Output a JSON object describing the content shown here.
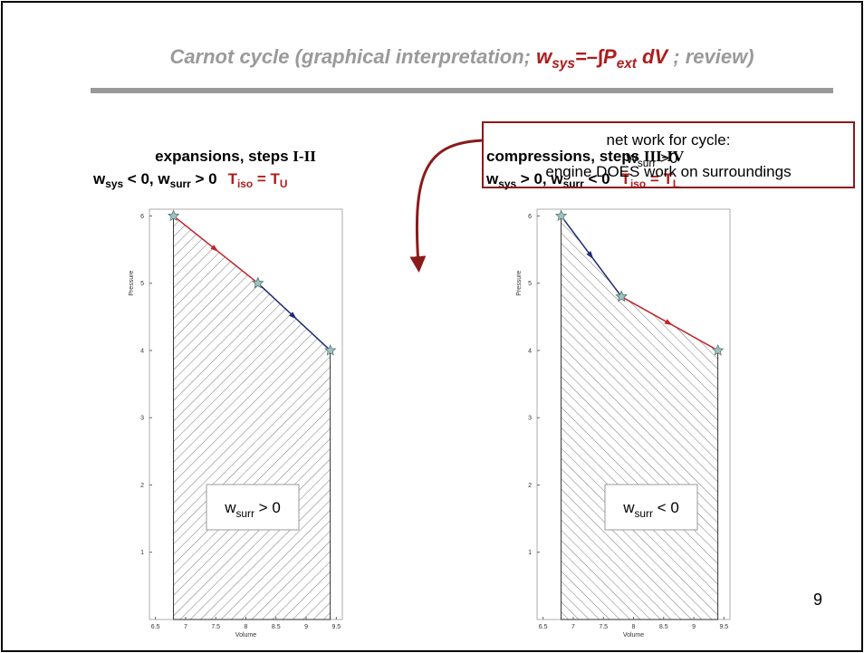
{
  "title": [
    "Carnot cycle (graphical interpretation; ",
    "w",
    "sys",
    "=–∫",
    "P",
    "ext",
    " dV",
    " ;   review)"
  ],
  "left_heading": [
    "expansions, steps ",
    "I-II"
  ],
  "left_condition": [
    "w",
    "sys",
    " <  0, w",
    "surr",
    " > 0",
    "T",
    "iso",
    " = T",
    "U"
  ],
  "right_heading": [
    "compressions, steps ",
    "III-IV"
  ],
  "right_condition": [
    "w",
    "sys",
    " > 0, w",
    "surr",
    " < 0",
    "T",
    "iso",
    " = T",
    "L"
  ],
  "callout": {
    "line1": "net work for cycle:",
    "line2": [
      "w",
      "surr",
      " >0"
    ],
    "line3": "engine DOES work on surroundings"
  },
  "page_number": "9",
  "chart_data": [
    {
      "type": "line",
      "xlabel": "Volume",
      "ylabel": "Pressure",
      "xlim": [
        6.4,
        9.6
      ],
      "ylim": [
        0,
        6.1
      ],
      "xticks": [
        6.5,
        7,
        {
          "value": 7.5,
          "label": "7.5"
        },
        8,
        8.5,
        9,
        9.5
      ],
      "yticks": [
        1,
        2,
        3,
        4,
        5,
        6
      ],
      "annotation": [
        "w",
        "surr",
        " > 0"
      ],
      "series": [
        {
          "color": "#c0262c",
          "x": [
            6.8,
            8.2
          ],
          "values": [
            6,
            5
          ]
        },
        {
          "color": "#1f2a7a",
          "x": [
            8.2,
            9.4
          ],
          "values": [
            5,
            4
          ]
        }
      ]
    },
    {
      "type": "line",
      "xlabel": "Volume",
      "ylabel": "Pressure",
      "xlim": [
        6.4,
        9.6
      ],
      "ylim": [
        0,
        6.1
      ],
      "xticks": [
        6.5,
        7,
        {
          "value": 7.5,
          "label": "7.5"
        },
        8,
        8.5,
        9,
        9.5
      ],
      "yticks": [
        1,
        2,
        3,
        4,
        5,
        6
      ],
      "annotation": [
        "w",
        "surr",
        " < 0"
      ],
      "series": [
        {
          "color": "#1f2a7a",
          "x": [
            6.8,
            7.8
          ],
          "values": [
            6,
            4.8
          ]
        },
        {
          "color": "#c0262c",
          "x": [
            7.8,
            9.4
          ],
          "values": [
            4.8,
            4
          ]
        }
      ]
    }
  ]
}
